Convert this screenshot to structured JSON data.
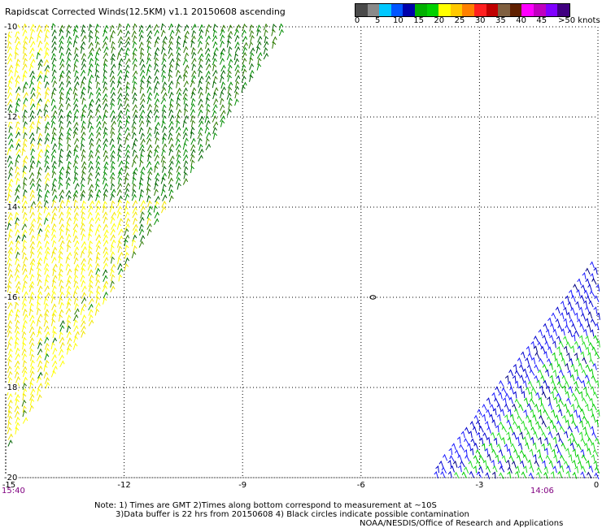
{
  "header": {
    "title": "Rapidscat Corrected Winds(12.5KM) v1.1 20150608 ascending"
  },
  "colorbar": {
    "colors": [
      "#4a4a4a",
      "#8a8a8a",
      "#00c8ff",
      "#0055ff",
      "#0000aa",
      "#00b000",
      "#00d000",
      "#ffff00",
      "#ffc800",
      "#ff8000",
      "#ff2020",
      "#c00000",
      "#806040",
      "#602000",
      "#ff00ff",
      "#c000c0",
      "#8000ff",
      "#400080"
    ],
    "labels": [
      "0",
      "5",
      "10",
      "15",
      "20",
      "25",
      "30",
      "35",
      "40",
      "45"
    ],
    "unit": ">50 knots"
  },
  "axes": {
    "lat_labels": [
      "-10",
      "-12",
      "-14",
      "-16",
      "-18",
      "-20"
    ],
    "lon_labels": [
      "-15",
      "-12",
      "-9",
      "-6",
      "-3",
      "0"
    ],
    "x_range": [
      -15,
      0
    ],
    "y_range": [
      -10,
      -20
    ]
  },
  "time_labels": {
    "left": "15:40",
    "right": "14:06"
  },
  "swaths": {
    "left_colors": [
      "#ffff00",
      "#f2e600",
      "#008c00",
      "#2d7a00",
      "#006400"
    ],
    "right_colors": [
      "#0000cc",
      "#1a1aff",
      "#00cc00",
      "#22dd22",
      "#000080"
    ]
  },
  "contamination_mark": {
    "lon": -5.7,
    "lat": -16.0
  },
  "notes": {
    "line1": "Note: 1) Times are GMT 2)Times along bottom correspond to measurement at ~10S",
    "line2": "3)Data buffer is 22 hrs from 20150608 4) Black circles indicate possible contamination",
    "line3": "NOAA/NESDIS/Office of Research and Applications"
  }
}
